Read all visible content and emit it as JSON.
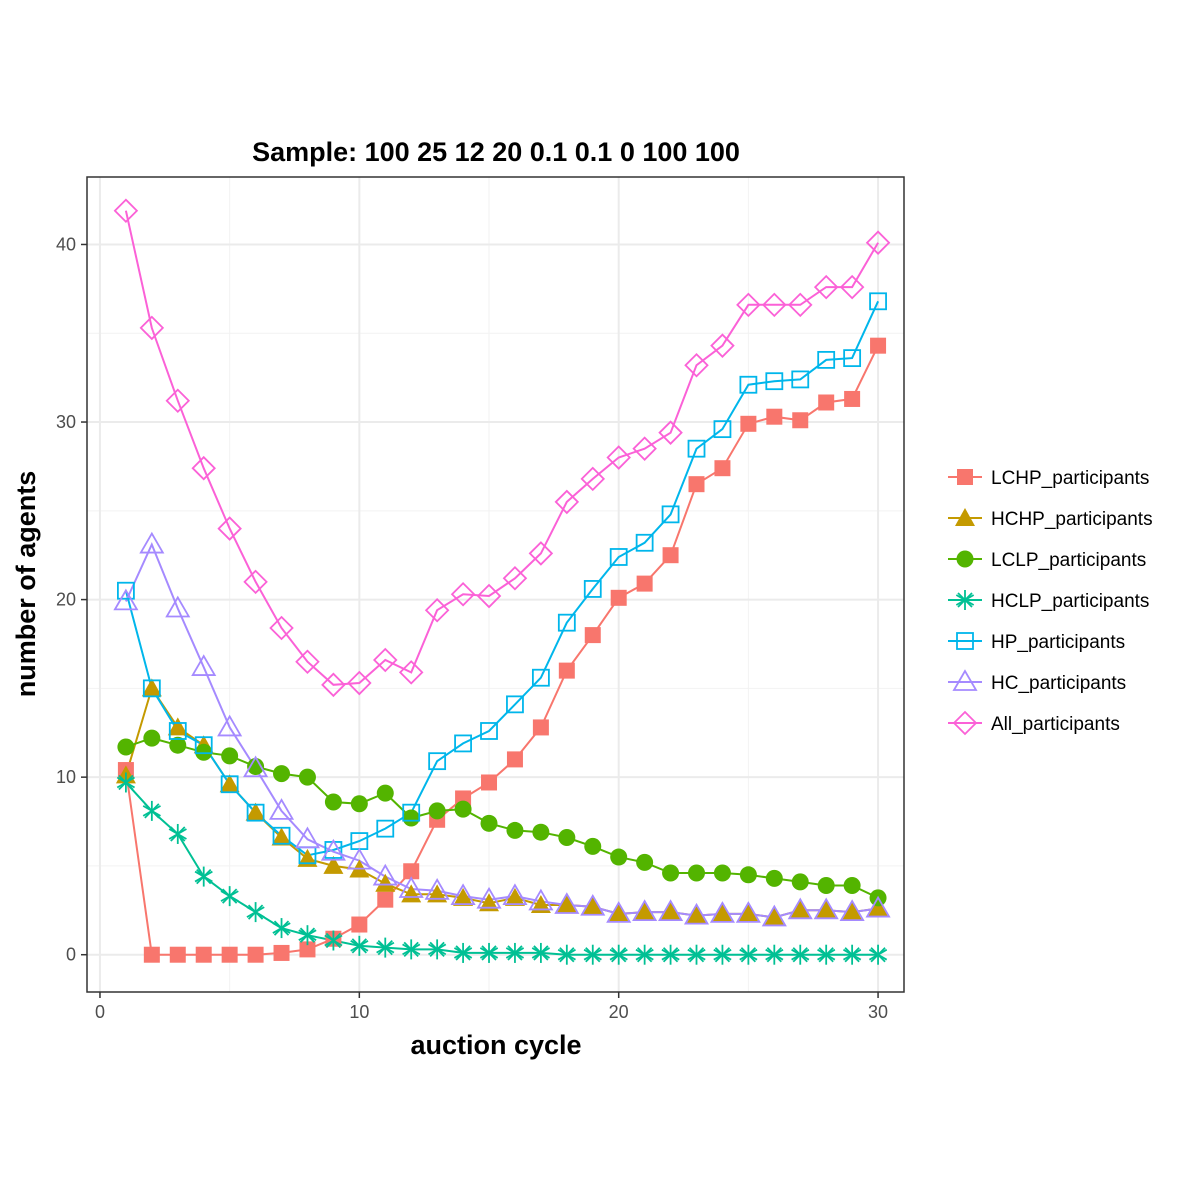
{
  "chart_data": {
    "type": "line",
    "title": "Sample: 100 25 12 20 0.1 0.1 0 100 100",
    "xlabel": "auction cycle",
    "ylabel": "number of agents",
    "xlim": [
      -0.5,
      31
    ],
    "ylim": [
      -2.1,
      43.8
    ],
    "xticks": [
      0,
      10,
      20,
      30
    ],
    "yticks": [
      0,
      10,
      20,
      30,
      40
    ],
    "grid": true,
    "legend_position": "right",
    "x": [
      1,
      2,
      3,
      4,
      5,
      6,
      7,
      8,
      9,
      10,
      11,
      12,
      13,
      14,
      15,
      16,
      17,
      18,
      19,
      20,
      21,
      22,
      23,
      24,
      25,
      26,
      27,
      28,
      29,
      30
    ],
    "series": [
      {
        "name": "LCHP_participants",
        "color": "#F8766D",
        "marker": "square-filled",
        "values": [
          10.4,
          0,
          0,
          0,
          0,
          0,
          0.1,
          0.3,
          0.9,
          1.7,
          3.1,
          4.7,
          7.6,
          8.8,
          9.7,
          11.0,
          12.8,
          16.0,
          18.0,
          20.1,
          20.9,
          22.5,
          26.5,
          27.4,
          29.9,
          30.3,
          30.1,
          31.1,
          31.3,
          34.3
        ]
      },
      {
        "name": "HCHP_participants",
        "color": "#C49A00",
        "marker": "triangle-filled",
        "values": [
          10.1,
          15.0,
          12.8,
          11.8,
          9.6,
          8.0,
          6.6,
          5.4,
          5.0,
          4.8,
          4.0,
          3.4,
          3.4,
          3.2,
          2.9,
          3.2,
          2.8,
          2.8,
          2.7,
          2.3,
          2.4,
          2.4,
          2.2,
          2.3,
          2.3,
          2.1,
          2.5,
          2.5,
          2.4,
          2.6
        ]
      },
      {
        "name": "LCLP_participants",
        "color": "#53B400",
        "marker": "circle-filled",
        "values": [
          11.7,
          12.2,
          11.8,
          11.4,
          11.2,
          10.6,
          10.2,
          10.0,
          8.6,
          8.5,
          9.1,
          7.7,
          8.1,
          8.2,
          7.4,
          7.0,
          6.9,
          6.6,
          6.1,
          5.5,
          5.2,
          4.6,
          4.6,
          4.6,
          4.5,
          4.3,
          4.1,
          3.9,
          3.9,
          3.2
        ]
      },
      {
        "name": "HCLP_participants",
        "color": "#00C094",
        "marker": "asterisk",
        "values": [
          9.7,
          8.1,
          6.8,
          4.4,
          3.3,
          2.4,
          1.5,
          1.1,
          0.8,
          0.5,
          0.4,
          0.3,
          0.3,
          0.1,
          0.1,
          0.1,
          0.1,
          0.0,
          0.0,
          0.0,
          0.0,
          0.0,
          0.0,
          0.0,
          0.0,
          0.0,
          0.0,
          0.0,
          0.0,
          0.0
        ]
      },
      {
        "name": "HP_participants",
        "color": "#00B6EB",
        "marker": "square-open",
        "values": [
          20.5,
          15.0,
          12.6,
          11.8,
          9.6,
          8.0,
          6.7,
          5.6,
          5.9,
          6.4,
          7.1,
          8.0,
          10.9,
          11.9,
          12.6,
          14.1,
          15.6,
          18.7,
          20.6,
          22.4,
          23.2,
          24.8,
          28.5,
          29.6,
          32.1,
          32.3,
          32.4,
          33.5,
          33.6,
          36.8
        ]
      },
      {
        "name": "HC_participants",
        "color": "#A58AFF",
        "marker": "triangle-open",
        "values": [
          19.9,
          23.1,
          19.5,
          16.2,
          12.8,
          10.5,
          8.1,
          6.5,
          5.8,
          5.3,
          4.4,
          3.7,
          3.6,
          3.3,
          3.1,
          3.3,
          3.0,
          2.8,
          2.7,
          2.3,
          2.4,
          2.4,
          2.2,
          2.3,
          2.3,
          2.1,
          2.5,
          2.5,
          2.4,
          2.6
        ]
      },
      {
        "name": "All_participants",
        "color": "#FB61D7",
        "marker": "diamond-open",
        "values": [
          41.9,
          35.3,
          31.2,
          27.4,
          24.0,
          21.0,
          18.4,
          16.5,
          15.2,
          15.3,
          16.6,
          15.9,
          19.4,
          20.3,
          20.2,
          21.2,
          22.6,
          25.5,
          26.8,
          28.0,
          28.5,
          29.4,
          33.2,
          34.3,
          36.6,
          36.6,
          36.6,
          37.6,
          37.6,
          40.1
        ]
      }
    ]
  }
}
